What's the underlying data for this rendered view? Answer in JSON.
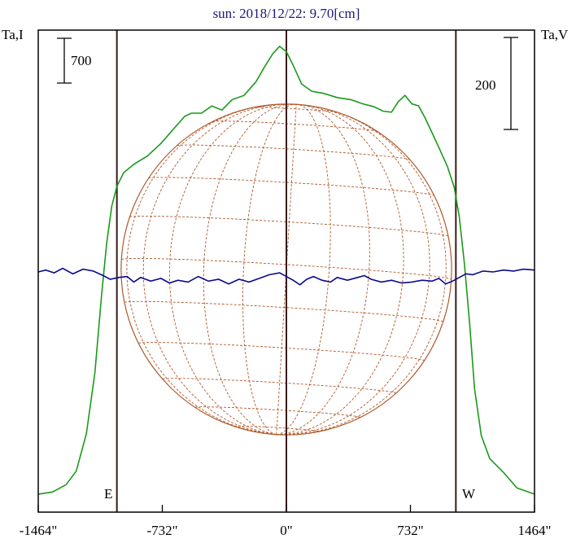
{
  "title": "sun: 2018/12/22: 9.70[cm]",
  "colors": {
    "background": "#ffffff",
    "frame": "#000000",
    "title": "#1a1a7a",
    "stokes_i": "#1a9a1a",
    "stokes_v": "#0a0a8a",
    "limb_lines": "#3a1a1a",
    "solar_disk": "#b0582a"
  },
  "chart_data": {
    "type": "line",
    "title": "sun: 2018/12/22: 9.70[cm]",
    "x_axis": {
      "unit": "arcsec",
      "range": [
        -1464,
        1464
      ],
      "ticks": [
        -1464,
        -732,
        0,
        732,
        1464
      ],
      "tick_labels": [
        "-1464\"",
        "-732\"",
        "0\"",
        "732\"",
        "1464\""
      ]
    },
    "left_axis_label": "Ta,I",
    "right_axis_label": "Ta,V",
    "scale_bars": [
      {
        "axis": "left",
        "label": "700",
        "value": 700
      },
      {
        "axis": "right",
        "label": "200",
        "value": 200
      }
    ],
    "limb_markers": [
      {
        "label": "E",
        "x": -1000
      },
      {
        "label": "W",
        "x": 1000
      }
    ],
    "center_marker_x": 0,
    "solar_disk": {
      "radius_arcsec": 975,
      "grid": "heliographic"
    },
    "series": [
      {
        "axis": "left",
        "points": [
          [
            -1464,
            40
          ],
          [
            -1380,
            60
          ],
          [
            -1300,
            130
          ],
          [
            -1240,
            260
          ],
          [
            -1180,
            620
          ],
          [
            -1130,
            1200
          ],
          [
            -1090,
            1950
          ],
          [
            -1060,
            2450
          ],
          [
            -1030,
            2800
          ],
          [
            -1000,
            2990
          ],
          [
            -960,
            3120
          ],
          [
            -900,
            3200
          ],
          [
            -820,
            3280
          ],
          [
            -740,
            3400
          ],
          [
            -670,
            3530
          ],
          [
            -600,
            3660
          ],
          [
            -560,
            3690
          ],
          [
            -500,
            3690
          ],
          [
            -440,
            3760
          ],
          [
            -380,
            3720
          ],
          [
            -320,
            3820
          ],
          [
            -250,
            3860
          ],
          [
            -180,
            3990
          ],
          [
            -130,
            4130
          ],
          [
            -80,
            4260
          ],
          [
            -40,
            4330
          ],
          [
            0,
            4280
          ],
          [
            40,
            4150
          ],
          [
            90,
            3970
          ],
          [
            150,
            3900
          ],
          [
            220,
            3880
          ],
          [
            300,
            3840
          ],
          [
            380,
            3820
          ],
          [
            450,
            3780
          ],
          [
            520,
            3750
          ],
          [
            570,
            3710
          ],
          [
            620,
            3700
          ],
          [
            660,
            3800
          ],
          [
            700,
            3860
          ],
          [
            740,
            3780
          ],
          [
            780,
            3760
          ],
          [
            820,
            3640
          ],
          [
            860,
            3500
          ],
          [
            900,
            3360
          ],
          [
            950,
            3180
          ],
          [
            990,
            2980
          ],
          [
            1020,
            2700
          ],
          [
            1050,
            2250
          ],
          [
            1080,
            1700
          ],
          [
            1110,
            1050
          ],
          [
            1150,
            600
          ],
          [
            1200,
            380
          ],
          [
            1280,
            250
          ],
          [
            1360,
            100
          ],
          [
            1464,
            40
          ]
        ]
      },
      {
        "axis": "right",
        "points": [
          [
            -1464,
            0
          ],
          [
            -1420,
            4
          ],
          [
            -1370,
            -2
          ],
          [
            -1320,
            8
          ],
          [
            -1260,
            -4
          ],
          [
            -1200,
            6
          ],
          [
            -1140,
            2
          ],
          [
            -1080,
            -8
          ],
          [
            -1040,
            -16
          ],
          [
            -990,
            -12
          ],
          [
            -940,
            -10
          ],
          [
            -900,
            -22
          ],
          [
            -860,
            -12
          ],
          [
            -800,
            -20
          ],
          [
            -740,
            -14
          ],
          [
            -690,
            -24
          ],
          [
            -640,
            -18
          ],
          [
            -580,
            -22
          ],
          [
            -520,
            -10
          ],
          [
            -460,
            -20
          ],
          [
            -400,
            -16
          ],
          [
            -340,
            -26
          ],
          [
            -280,
            -16
          ],
          [
            -220,
            -22
          ],
          [
            -160,
            -14
          ],
          [
            -100,
            -6
          ],
          [
            -40,
            -2
          ],
          [
            0,
            -10
          ],
          [
            40,
            -18
          ],
          [
            80,
            -28
          ],
          [
            120,
            -16
          ],
          [
            160,
            -10
          ],
          [
            210,
            -18
          ],
          [
            260,
            -22
          ],
          [
            300,
            -12
          ],
          [
            360,
            -18
          ],
          [
            420,
            -12
          ],
          [
            460,
            -8
          ],
          [
            500,
            -16
          ],
          [
            560,
            -22
          ],
          [
            620,
            -18
          ],
          [
            680,
            -24
          ],
          [
            740,
            -22
          ],
          [
            800,
            -18
          ],
          [
            860,
            -20
          ],
          [
            900,
            -14
          ],
          [
            940,
            -26
          ],
          [
            980,
            -20
          ],
          [
            1020,
            -12
          ],
          [
            1060,
            -4
          ],
          [
            1100,
            -6
          ],
          [
            1160,
            2
          ],
          [
            1220,
            0
          ],
          [
            1280,
            4
          ],
          [
            1340,
            2
          ],
          [
            1400,
            6
          ],
          [
            1464,
            4
          ]
        ]
      }
    ]
  }
}
